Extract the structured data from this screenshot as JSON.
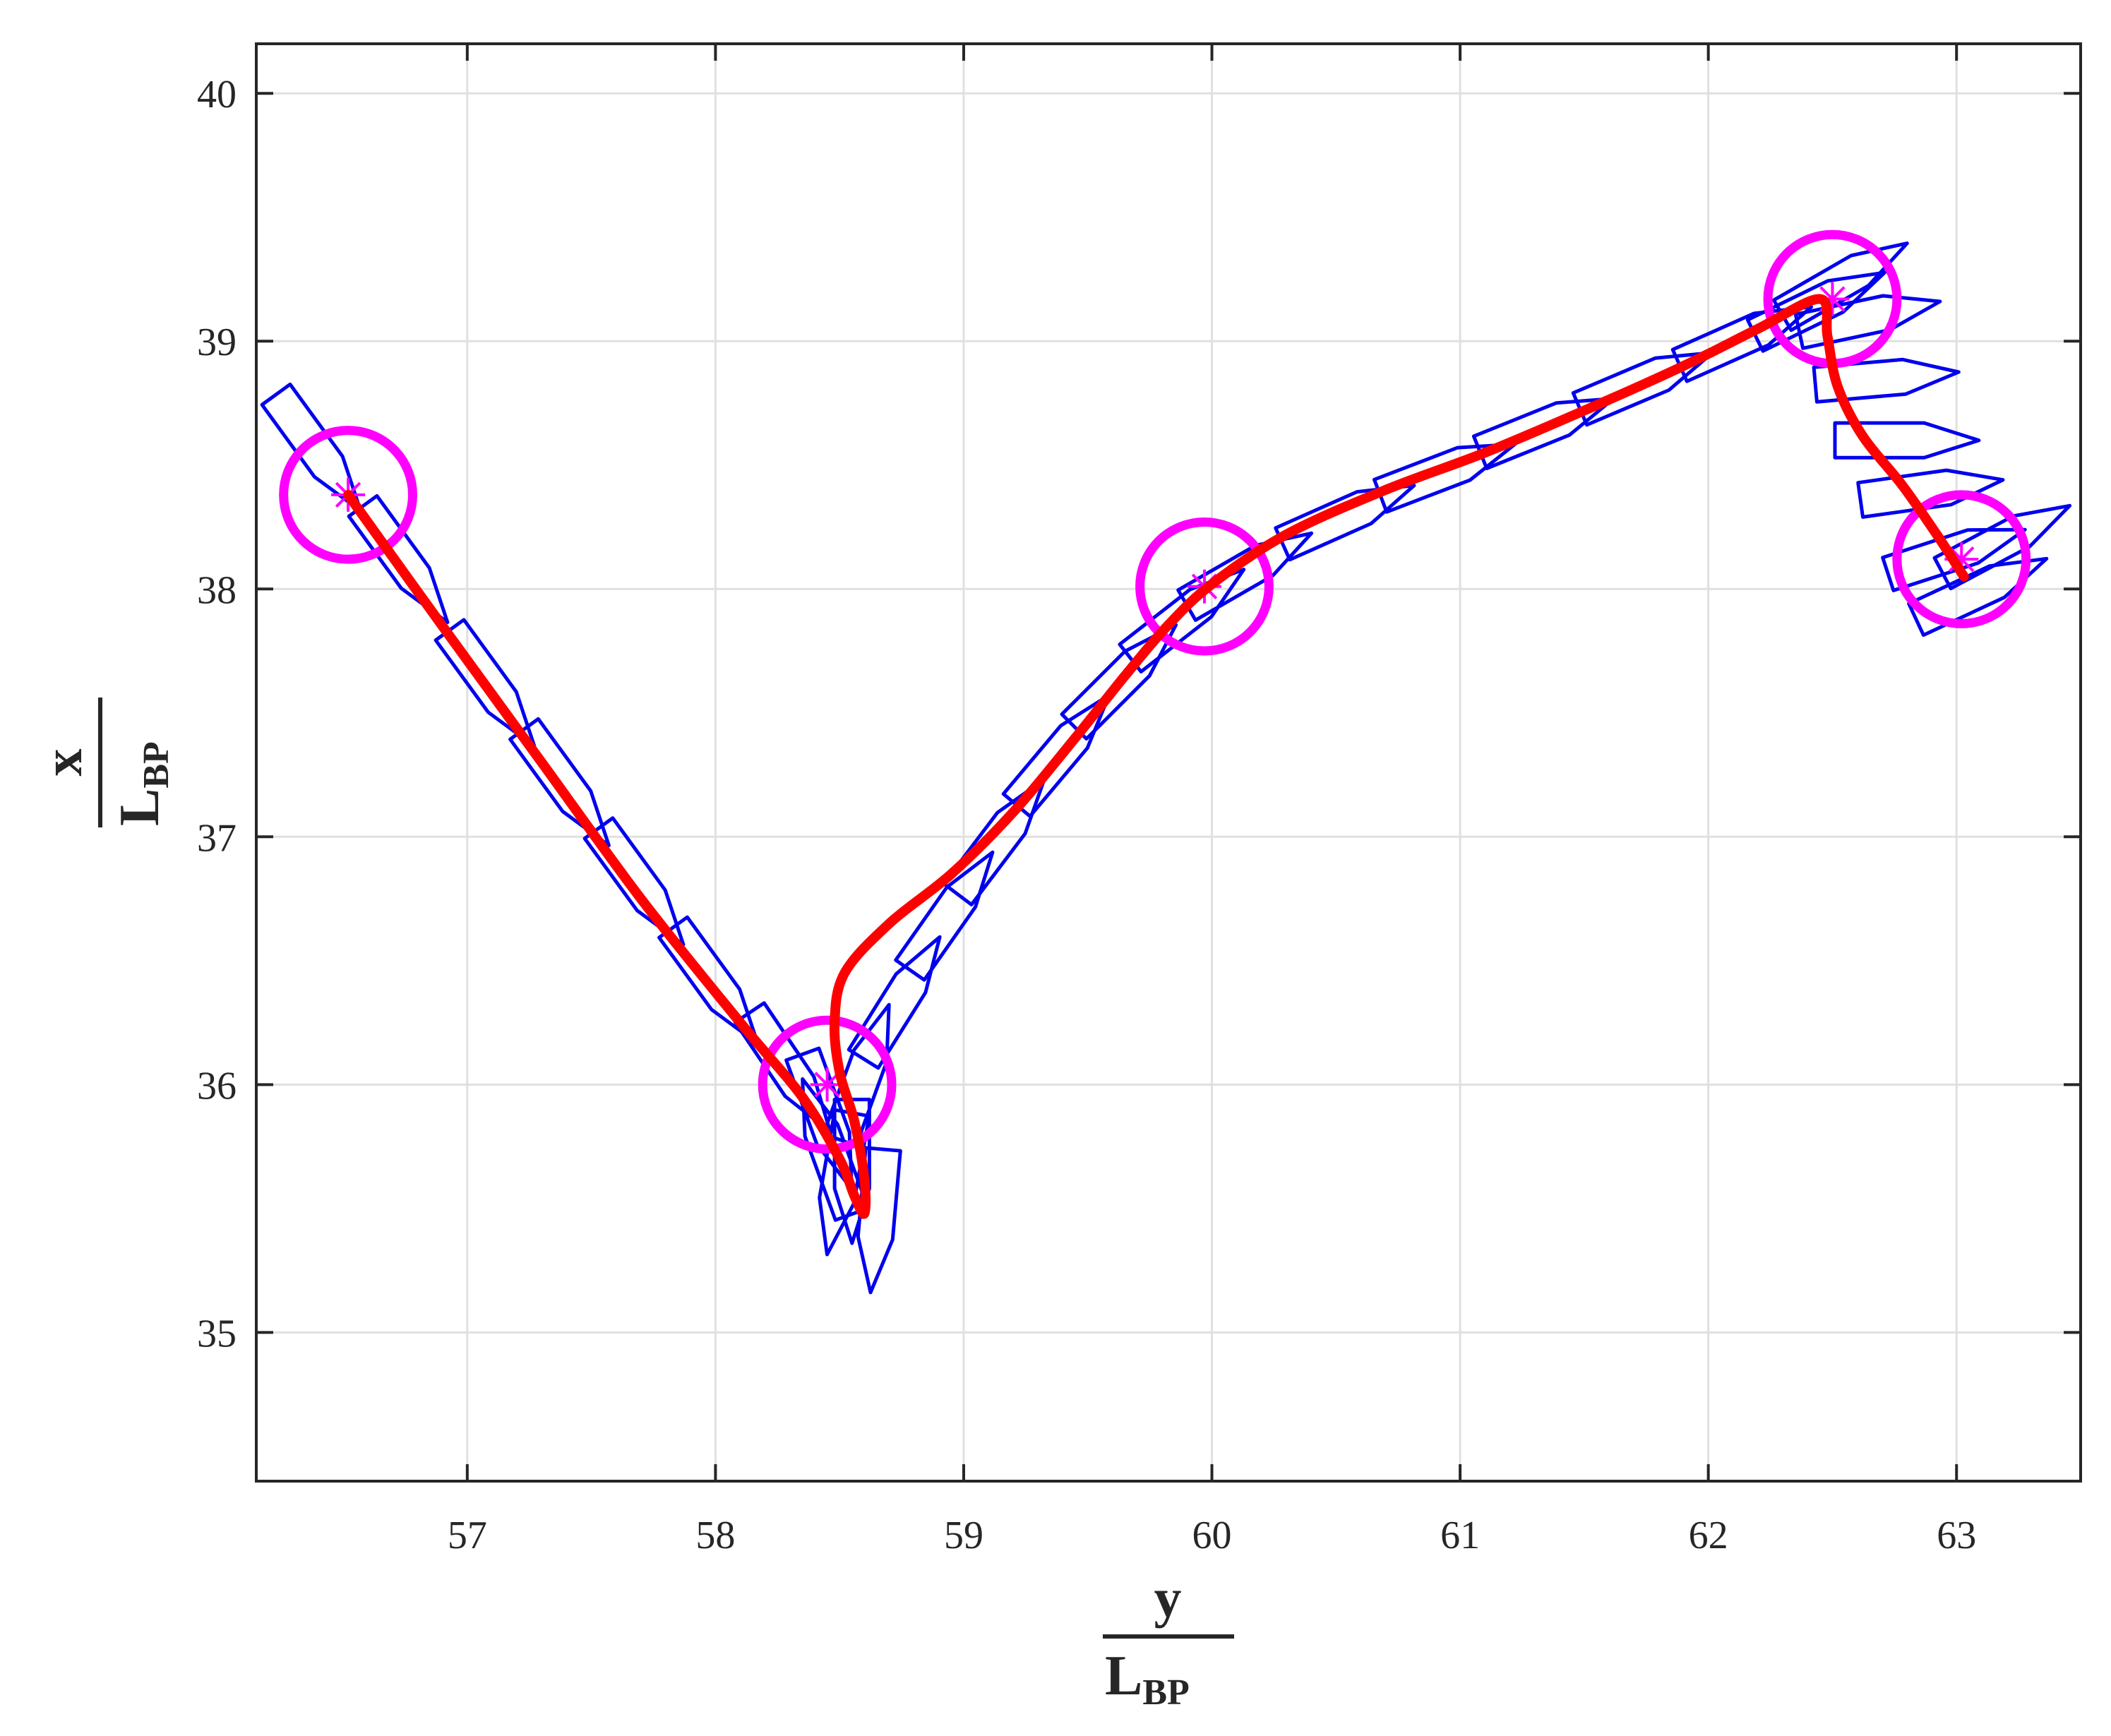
{
  "chart_data": {
    "type": "line",
    "xlabel": {
      "num": "y",
      "den": "L",
      "sub": "BP"
    },
    "ylabel": {
      "num": "x",
      "den": "L",
      "sub": "BP"
    },
    "xlim": [
      56.15,
      63.5
    ],
    "ylim": [
      34.4,
      40.2
    ],
    "xticks": [
      57,
      58,
      59,
      60,
      61,
      62,
      63
    ],
    "yticks": [
      35,
      36,
      37,
      38,
      39,
      40
    ],
    "grid": true,
    "colors": {
      "trajectory": "#ff0000",
      "waypoint": "#ff00ff",
      "hull": "#0000ee",
      "grid": "#e0e0e0",
      "axis": "#262626"
    },
    "waypoints": [
      {
        "y": 56.52,
        "x": 38.38
      },
      {
        "y": 58.45,
        "x": 36.0
      },
      {
        "y": 59.97,
        "x": 38.01
      },
      {
        "y": 62.5,
        "x": 39.17
      },
      {
        "y": 63.02,
        "x": 38.12
      }
    ],
    "waypoint_radius": 0.26,
    "trajectory": {
      "y": [
        56.52,
        56.9,
        57.3,
        57.7,
        58.1,
        58.35,
        58.5,
        58.56,
        58.6,
        58.6,
        58.56,
        58.5,
        58.48,
        58.52,
        58.7,
        58.95,
        59.2,
        59.45,
        59.65,
        59.82,
        60.0,
        60.3,
        60.7,
        61.1,
        61.5,
        61.9,
        62.2,
        62.45,
        62.48,
        62.52,
        62.62,
        62.78,
        62.92,
        63.03
      ],
      "x": [
        38.38,
        37.85,
        37.3,
        36.75,
        36.25,
        35.95,
        35.7,
        35.55,
        35.48,
        35.62,
        35.85,
        36.05,
        36.25,
        36.45,
        36.65,
        36.85,
        37.1,
        37.4,
        37.65,
        37.85,
        38.02,
        38.22,
        38.4,
        38.55,
        38.72,
        38.9,
        39.05,
        39.17,
        39.02,
        38.82,
        38.62,
        38.42,
        38.22,
        38.05
      ]
    },
    "hulls": [
      {
        "y": 56.4,
        "x": 38.55,
        "heading": -54
      },
      {
        "y": 56.75,
        "x": 38.1,
        "heading": -54
      },
      {
        "y": 57.1,
        "x": 37.6,
        "heading": -54
      },
      {
        "y": 57.4,
        "x": 37.2,
        "heading": -54
      },
      {
        "y": 57.7,
        "x": 36.8,
        "heading": -54
      },
      {
        "y": 58.0,
        "x": 36.4,
        "heading": -54
      },
      {
        "y": 58.3,
        "x": 36.05,
        "heading": -56
      },
      {
        "y": 58.45,
        "x": 35.85,
        "heading": -70
      },
      {
        "y": 58.55,
        "x": 35.65,
        "heading": -90
      },
      {
        "y": 58.65,
        "x": 35.45,
        "heading": -95
      },
      {
        "y": 58.5,
        "x": 35.6,
        "heading": -100
      },
      {
        "y": 58.45,
        "x": 35.75,
        "heading": 110
      },
      {
        "y": 58.6,
        "x": 36.05,
        "heading": 70
      },
      {
        "y": 58.75,
        "x": 36.35,
        "heading": 58
      },
      {
        "y": 58.95,
        "x": 36.7,
        "heading": 55
      },
      {
        "y": 59.15,
        "x": 37.0,
        "heading": 53
      },
      {
        "y": 59.4,
        "x": 37.35,
        "heading": 50
      },
      {
        "y": 59.65,
        "x": 37.65,
        "heading": 45
      },
      {
        "y": 59.9,
        "x": 37.9,
        "heading": 38
      },
      {
        "y": 60.15,
        "x": 38.08,
        "heading": 30
      },
      {
        "y": 60.55,
        "x": 38.3,
        "heading": 24
      },
      {
        "y": 60.95,
        "x": 38.48,
        "heading": 21
      },
      {
        "y": 61.35,
        "x": 38.66,
        "heading": 22
      },
      {
        "y": 61.75,
        "x": 38.84,
        "heading": 23
      },
      {
        "y": 62.15,
        "x": 39.02,
        "heading": 24
      },
      {
        "y": 62.45,
        "x": 39.15,
        "heading": 26
      },
      {
        "y": 62.55,
        "x": 39.25,
        "heading": 30
      },
      {
        "y": 62.65,
        "x": 39.1,
        "heading": 12
      },
      {
        "y": 62.72,
        "x": 38.85,
        "heading": 5
      },
      {
        "y": 62.8,
        "x": 38.6,
        "heading": 0
      },
      {
        "y": 62.9,
        "x": 38.4,
        "heading": 8
      },
      {
        "y": 63.0,
        "x": 38.15,
        "heading": 18
      },
      {
        "y": 63.1,
        "x": 38.0,
        "heading": 25
      },
      {
        "y": 63.2,
        "x": 38.2,
        "heading": 28
      }
    ]
  }
}
